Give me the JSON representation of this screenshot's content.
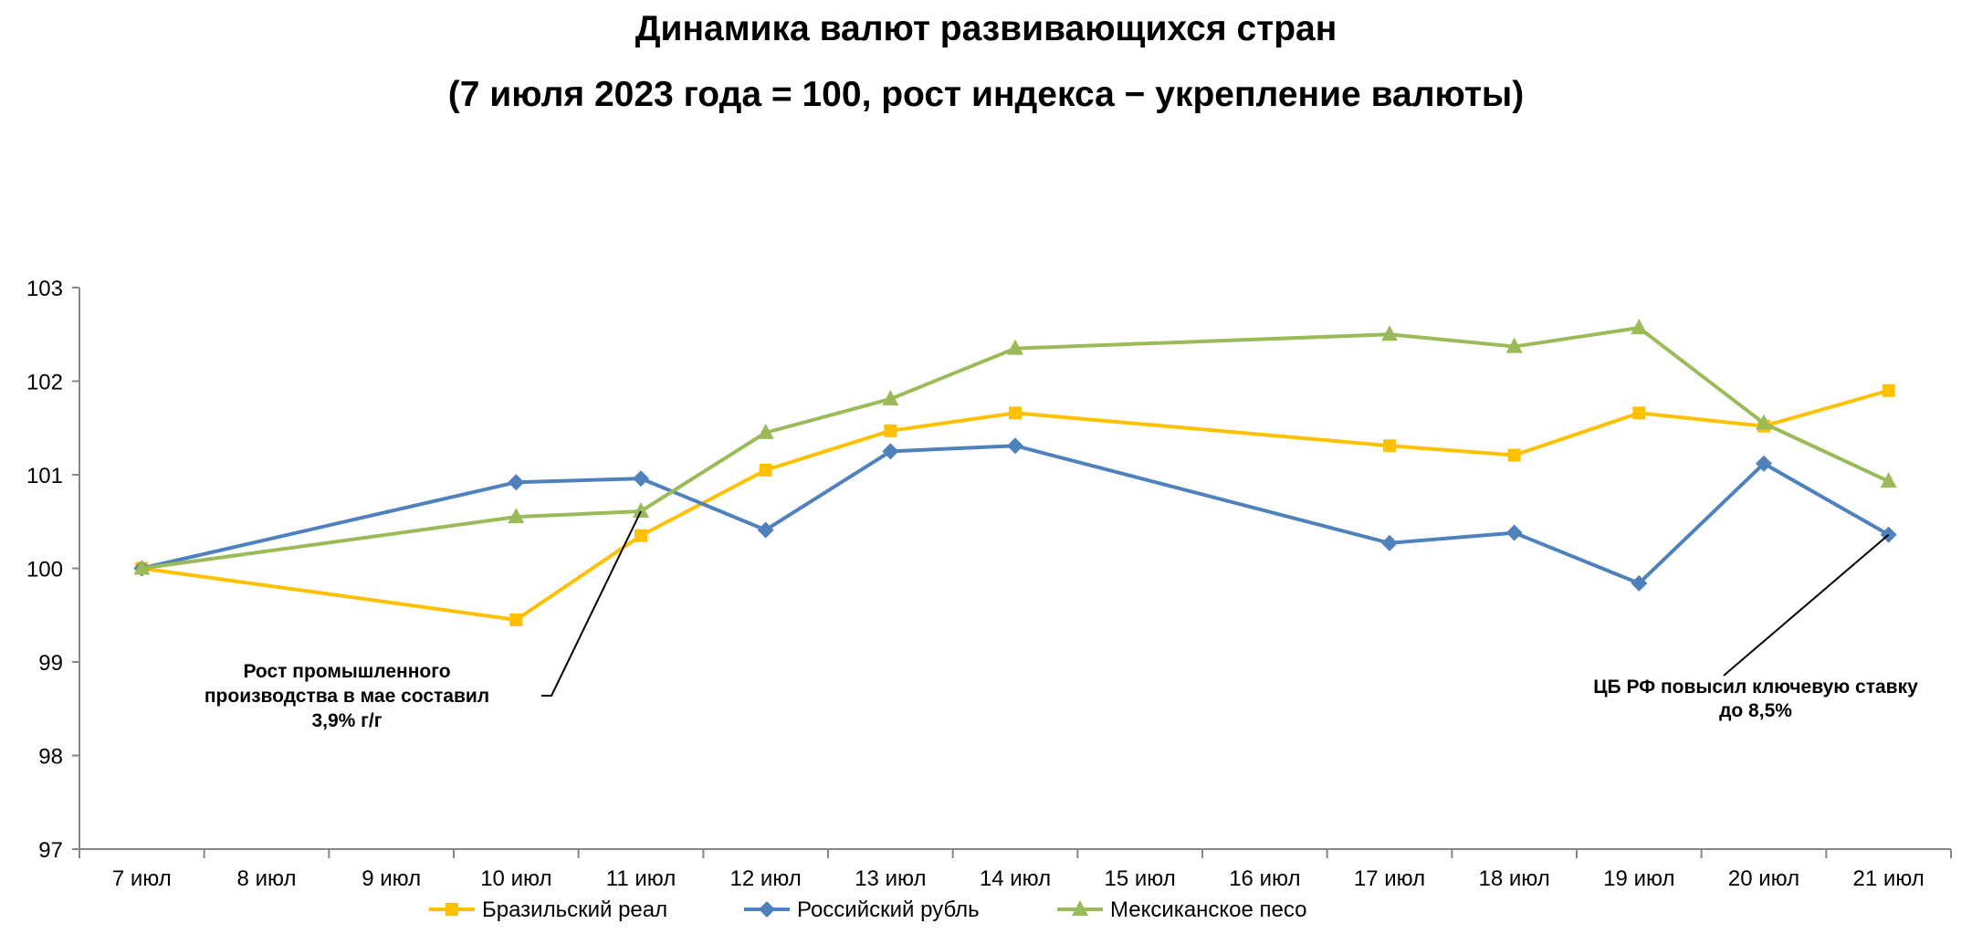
{
  "chart_data": {
    "type": "line",
    "title": "Динамика валют развивающихся стран",
    "subtitle": "(7 июля 2023 года = 100, рост индекса − укрепление валюты)",
    "categories": [
      "7 июл",
      "8 июл",
      "9 июл",
      "10 июл",
      "11 июл",
      "12 июл",
      "13 июл",
      "14 июл",
      "15 июл",
      "16 июл",
      "17 июл",
      "18 июл",
      "19 июл",
      "20 июл",
      "21 июл"
    ],
    "ylim": [
      97,
      103
    ],
    "yticks": [
      97,
      98,
      99,
      100,
      101,
      102,
      103
    ],
    "series": [
      {
        "name": "Бразильский реал",
        "color": "#FFC000",
        "marker": "square",
        "values": [
          100.0,
          null,
          null,
          99.45,
          100.35,
          101.05,
          101.47,
          101.66,
          null,
          null,
          101.31,
          101.21,
          101.66,
          101.52,
          101.9
        ]
      },
      {
        "name": "Российский рубль",
        "color": "#4F81BD",
        "marker": "diamond",
        "values": [
          100.0,
          null,
          null,
          100.92,
          100.96,
          100.41,
          101.25,
          101.31,
          null,
          null,
          100.27,
          100.38,
          99.84,
          101.12,
          100.36
        ]
      },
      {
        "name": "Мексиканское песо",
        "color": "#9BBB59",
        "marker": "triangle",
        "values": [
          100.0,
          null,
          null,
          100.55,
          100.61,
          101.45,
          101.81,
          102.35,
          null,
          null,
          102.5,
          102.37,
          102.57,
          101.55,
          100.93
        ]
      }
    ],
    "annotations": [
      {
        "lines": [
          "Рост промышленного",
          "производства в мае составил",
          "3,9% г/г"
        ],
        "category": "11 июл",
        "series": "Мексиканское песо"
      },
      {
        "lines": [
          "ЦБ РФ повысил ключевую ставку",
          "до 8,5%"
        ],
        "category": "21 июл",
        "series": "Российский рубль"
      }
    ],
    "legend": "bottom",
    "grid": false
  }
}
